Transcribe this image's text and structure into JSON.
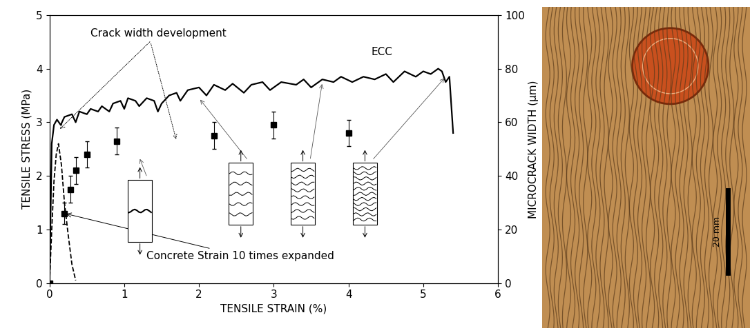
{
  "chart_data": {
    "type": "line",
    "xlabel": "TENSILE STRAIN (%)",
    "ylabel": "TENSILE STRESS (MPa)",
    "y2label": "MICROCRACK WIDTH (µm)",
    "xlim": [
      0,
      6
    ],
    "xticks": [
      0,
      1,
      2,
      3,
      4,
      5,
      6
    ],
    "ylim": [
      0,
      5
    ],
    "yticks": [
      0,
      1,
      2,
      3,
      4,
      5
    ],
    "y2lim": [
      0,
      100
    ],
    "y2ticks": [
      0,
      20,
      40,
      60,
      80,
      100
    ],
    "grid": false,
    "series": [
      {
        "name": "ECC",
        "type": "line",
        "color": "#000000",
        "line_style": "solid",
        "x": [
          0,
          0.03,
          0.06,
          0.1,
          0.15,
          0.2,
          0.3,
          0.35,
          0.4,
          0.5,
          0.55,
          0.65,
          0.7,
          0.8,
          0.85,
          0.95,
          1.0,
          1.05,
          1.15,
          1.2,
          1.3,
          1.4,
          1.45,
          1.5,
          1.6,
          1.7,
          1.75,
          1.85,
          2.0,
          2.1,
          2.2,
          2.35,
          2.45,
          2.6,
          2.7,
          2.85,
          2.95,
          3.1,
          3.3,
          3.4,
          3.5,
          3.65,
          3.8,
          3.9,
          4.05,
          4.2,
          4.35,
          4.5,
          4.6,
          4.75,
          4.9,
          5.0,
          5.1,
          5.2,
          5.25,
          5.3,
          5.35,
          5.4
        ],
        "values": [
          0,
          2.6,
          2.95,
          3.05,
          2.95,
          3.1,
          3.15,
          3.0,
          3.2,
          3.15,
          3.25,
          3.2,
          3.3,
          3.2,
          3.35,
          3.4,
          3.25,
          3.45,
          3.4,
          3.3,
          3.45,
          3.4,
          3.2,
          3.35,
          3.5,
          3.55,
          3.4,
          3.6,
          3.65,
          3.5,
          3.7,
          3.6,
          3.72,
          3.55,
          3.7,
          3.75,
          3.6,
          3.75,
          3.7,
          3.8,
          3.65,
          3.8,
          3.75,
          3.85,
          3.75,
          3.85,
          3.8,
          3.9,
          3.75,
          3.95,
          3.85,
          3.95,
          3.9,
          4.0,
          3.95,
          3.75,
          3.85,
          2.8
        ]
      },
      {
        "name": "Concrete Strain 10 times expanded",
        "type": "line",
        "color": "#000000",
        "line_style": "dashed",
        "x": [
          0,
          0.03,
          0.06,
          0.09,
          0.12,
          0.16,
          0.2,
          0.25,
          0.3,
          0.35
        ],
        "values": [
          0,
          1.0,
          1.9,
          2.4,
          2.6,
          2.2,
          1.5,
          0.9,
          0.35,
          0.05
        ]
      },
      {
        "name": "Crack width development",
        "type": "scatter",
        "axis": "y2",
        "color": "#000000",
        "marker": "square",
        "x": [
          0,
          0.2,
          0.28,
          0.35,
          0.5,
          0.9,
          2.2,
          3.0,
          4.0
        ],
        "values": [
          0,
          26,
          35,
          42,
          48,
          53,
          55,
          59,
          56
        ],
        "errors": [
          0,
          4,
          5,
          5,
          5,
          5,
          5,
          5,
          5
        ]
      }
    ]
  },
  "photo": {
    "scale_bar_label": "20 mm"
  }
}
